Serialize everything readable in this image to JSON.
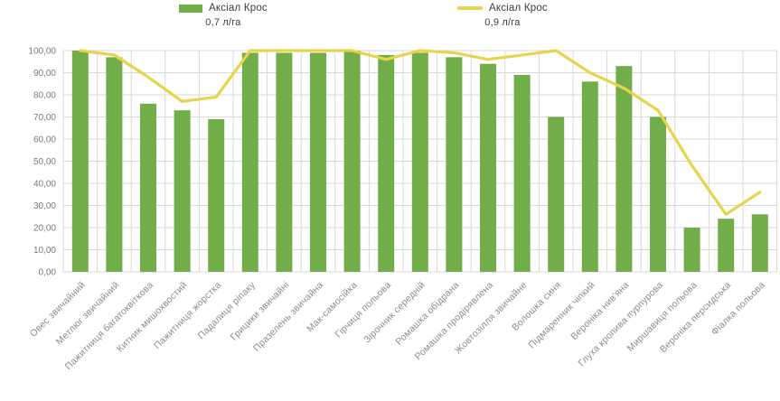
{
  "legend": [
    {
      "name": "Аксіал Крос",
      "dose": "0,7 л/га",
      "marker": "bar-swatch-icon",
      "color": "#71ad49"
    },
    {
      "name": "Аксіал Крос",
      "dose": "0,9 л/га",
      "marker": "line-swatch-icon",
      "color": "#e6d44d"
    }
  ],
  "colors": {
    "bar_green": "#71ad49",
    "line_yellow": "#e6d44d",
    "grid": "#d9d9d9",
    "axis_text": "#7a7a7a",
    "label_text": "#8c8c8c",
    "legend_text": "#3d3d3d"
  },
  "chart_data": {
    "type": "bar",
    "title": "",
    "xlabel": "",
    "ylabel": "",
    "ylim": [
      0,
      100
    ],
    "ytick_step": 10,
    "y_tick_labels": [
      "0,00",
      "10,00",
      "20,00",
      "30,00",
      "40,00",
      "50,00",
      "60,00",
      "70,00",
      "80,00",
      "90,00",
      "100,00"
    ],
    "grid": true,
    "legend_position": "top",
    "categories": [
      "Овес звичайний",
      "Метлюг звичайний",
      "Пажитниця багатоквіткова",
      "Китник мишохвостий",
      "Пажитниця жорстка",
      "Падалиця ріпаку",
      "Грицики звичайні",
      "Празелень звичайна",
      "Мак-самосійка",
      "Гірчиця польова",
      "Зірочник середній",
      "Ромашка обідрана",
      "Ромашка продірявлена",
      "Жовтозілля звичайне",
      "Волошка синя",
      "Підмаренник чіпкий",
      "Вероніка нив'яна",
      "Глуха кропива пурпурова",
      "Миршавиця польова",
      "Вероніка персидська",
      "Фіалка польова"
    ],
    "series": [
      {
        "name": "Аксіал Крос 0,7 л/га",
        "type": "bar",
        "color": "#71ad49",
        "values": [
          100,
          97,
          76,
          73,
          69,
          99,
          99,
          99,
          100,
          98,
          99,
          97,
          94,
          89,
          70,
          86,
          93,
          70,
          20,
          24,
          26
        ]
      },
      {
        "name": "Аксіал Крос 0,9 л/га",
        "type": "line",
        "color": "#e6d44d",
        "values": [
          100,
          98,
          88,
          77,
          79,
          100,
          100,
          100,
          100,
          96,
          100,
          99,
          96,
          98,
          100,
          90,
          83,
          73,
          48,
          26,
          36
        ]
      }
    ]
  }
}
